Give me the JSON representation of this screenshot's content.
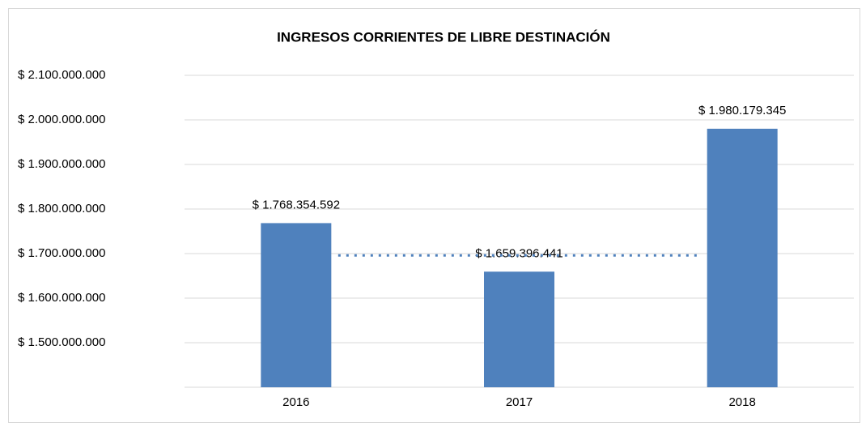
{
  "chart_data": {
    "type": "bar",
    "title": "INGRESOS CORRIENTES DE LIBRE DESTINACIÓN",
    "categories": [
      "2016",
      "2017",
      "2018"
    ],
    "values": [
      1768354592,
      1659396441,
      1980179345
    ],
    "value_labels": [
      "$ 1.768.354.592",
      "$ 1.659.396.441",
      "$ 1.980.179.345"
    ],
    "color": "#4f81bd",
    "reference_value": 1696000000,
    "ylim": [
      1400000000,
      2100000000
    ],
    "yticks": [
      {
        "value": 1500000000,
        "label": "$ 1.500.000.000"
      },
      {
        "value": 1600000000,
        "label": "$ 1.600.000.000"
      },
      {
        "value": 1700000000,
        "label": "$ 1.700.000.000"
      },
      {
        "value": 1800000000,
        "label": "$ 1.800.000.000"
      },
      {
        "value": 1900000000,
        "label": "$ 1.900.000.000"
      },
      {
        "value": 2000000000,
        "label": "$ 2.000.000.000"
      },
      {
        "value": 2100000000,
        "label": "$ 2.100.000.000"
      }
    ],
    "grid": true
  }
}
